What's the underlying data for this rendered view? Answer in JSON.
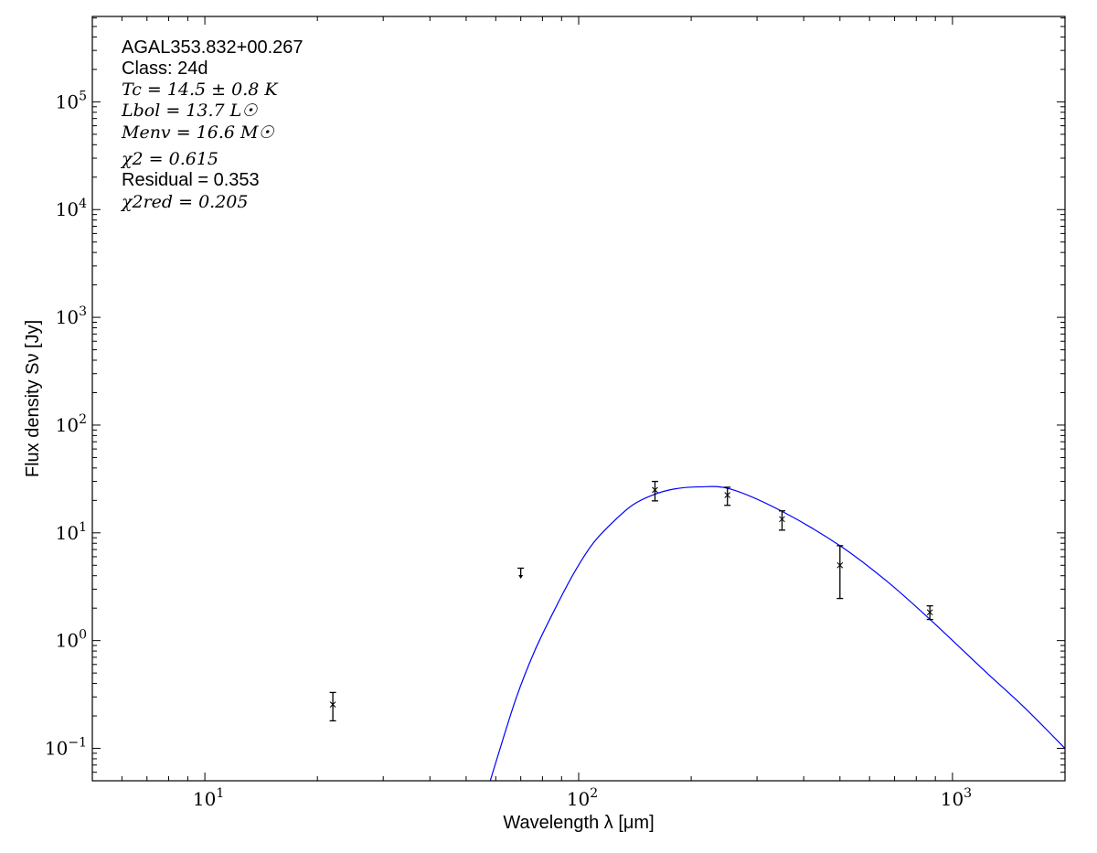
{
  "chart_data": {
    "type": "scatter",
    "xscale": "log",
    "yscale": "log",
    "xlim": [
      5,
      2000
    ],
    "ylim": [
      0.05,
      620000
    ],
    "xlabel": "Wavelength λ [μm]",
    "ylabel": "Flux density Sν [Jy]",
    "grid": false,
    "x_ticks": [
      {
        "value": 10,
        "base": "10",
        "exp": "1"
      },
      {
        "value": 100,
        "base": "10",
        "exp": "2"
      },
      {
        "value": 1000,
        "base": "10",
        "exp": "3"
      }
    ],
    "y_ticks": [
      {
        "value": 0.1,
        "base": "10",
        "exp": "−1"
      },
      {
        "value": 1,
        "base": "10",
        "exp": "0"
      },
      {
        "value": 10,
        "base": "10",
        "exp": "1"
      },
      {
        "value": 100,
        "base": "10",
        "exp": "2"
      },
      {
        "value": 1000,
        "base": "10",
        "exp": "3"
      },
      {
        "value": 10000,
        "base": "10",
        "exp": "4"
      },
      {
        "value": 100000,
        "base": "10",
        "exp": "5"
      }
    ],
    "annotations": {
      "source": "AGAL353.832+00.267",
      "class": "Class: 24d",
      "tc": "Tc = 14.5 ± 0.8 K",
      "lbol": "Lbol = 13.7 L☉",
      "menv": "Menv = 16.6 M☉",
      "chi2": "χ2 = 0.615",
      "residual": "Residual = 0.353",
      "chi2red": "χ2red = 0.205"
    },
    "measurements": [
      {
        "x": 22,
        "y": 0.255,
        "yerr_low": 0.18,
        "yerr_high": 0.33
      },
      {
        "x": 160,
        "y": 25,
        "yerr_low": 19.8,
        "yerr_high": 30
      },
      {
        "x": 250,
        "y": 22.4,
        "yerr_low": 18,
        "yerr_high": 26.5
      },
      {
        "x": 350,
        "y": 13.4,
        "yerr_low": 10.6,
        "yerr_high": 16
      },
      {
        "x": 500,
        "y": 5.0,
        "yerr_low": 2.46,
        "yerr_high": 7.6
      },
      {
        "x": 870,
        "y": 1.83,
        "yerr_low": 1.57,
        "yerr_high": 2.1
      }
    ],
    "upper_limits": [
      {
        "x": 70,
        "y": 4.7,
        "arrow_to": 3.75
      }
    ],
    "model": {
      "color": "#0000ff",
      "x": [
        58,
        67.5,
        76,
        86,
        97,
        109,
        123,
        139,
        157,
        180,
        210,
        255,
        348,
        500,
        668,
        871,
        1222,
        1556,
        2000
      ],
      "y": [
        0.05,
        0.27,
        0.78,
        1.9,
        4.2,
        7.9,
        12.4,
        18,
        22.3,
        25.5,
        26.7,
        25.5,
        16,
        7.6,
        3.55,
        1.57,
        0.52,
        0.24,
        0.1
      ]
    },
    "marker_color": "#000000"
  }
}
